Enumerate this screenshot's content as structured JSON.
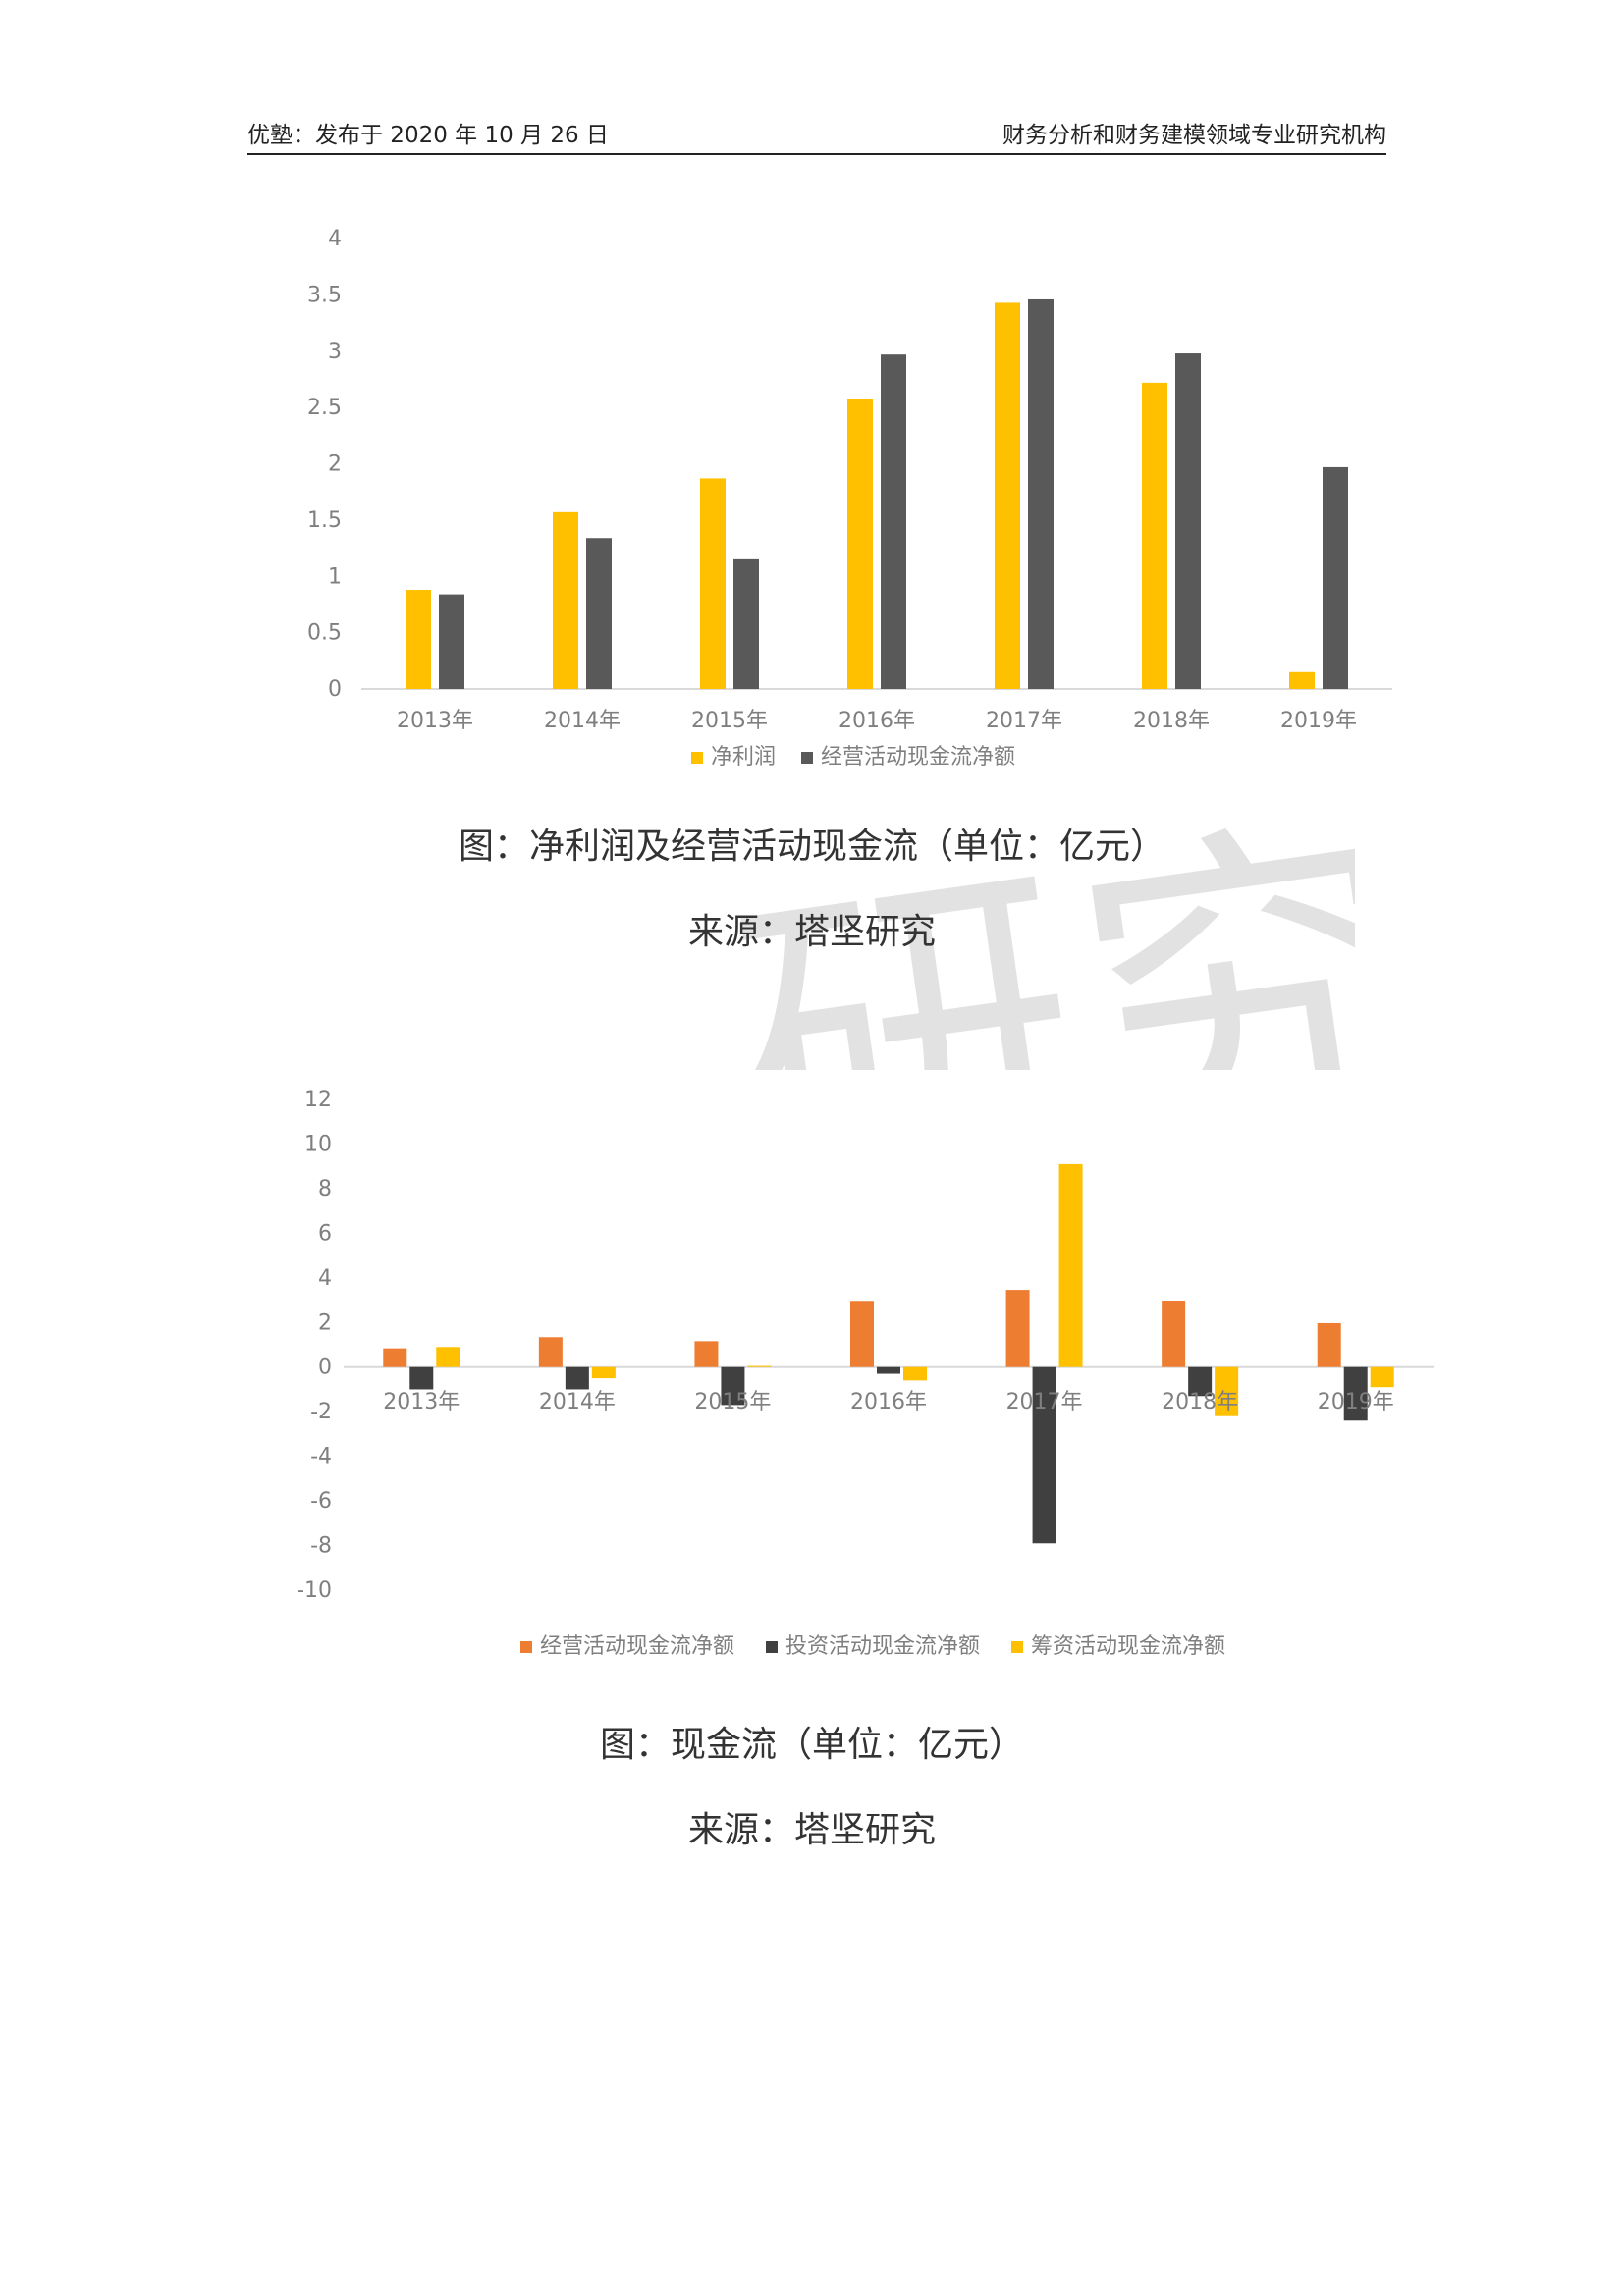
{
  "header": {
    "left": "优塾：发布于 2020 年 10 月 26 日",
    "right": "财务分析和财务建模领域专业研究机构"
  },
  "watermark": "研究",
  "captions": [
    {
      "title": "图：净利润及经营活动现金流（单位：亿元）",
      "source": "来源：塔坚研究"
    },
    {
      "title": "图：现金流（单位：亿元）",
      "source": "来源：塔坚研究"
    }
  ],
  "chart_data": [
    {
      "type": "bar",
      "categories": [
        "2013年",
        "2014年",
        "2015年",
        "2016年",
        "2017年",
        "2018年",
        "2019年"
      ],
      "series": [
        {
          "name": "净利润",
          "color": "#FFC000",
          "values": [
            0.88,
            1.57,
            1.87,
            2.58,
            3.43,
            2.72,
            0.15
          ]
        },
        {
          "name": "经营活动现金流净额",
          "color": "#595959",
          "values": [
            0.84,
            1.34,
            1.16,
            2.97,
            3.46,
            2.98,
            1.97
          ]
        }
      ],
      "ylim": [
        0,
        4
      ],
      "yticks": [
        0,
        0.5,
        1,
        1.5,
        2,
        2.5,
        3,
        3.5,
        4
      ],
      "grid": false,
      "legend": "bottom"
    },
    {
      "type": "bar",
      "categories": [
        "2013年",
        "2014年",
        "2015年",
        "2016年",
        "2017年",
        "2018年",
        "2019年"
      ],
      "series": [
        {
          "name": "经营活动现金流净额",
          "color": "#ED7D31",
          "values": [
            0.84,
            1.34,
            1.16,
            2.97,
            3.46,
            2.98,
            1.97
          ]
        },
        {
          "name": "投资活动现金流净额",
          "color": "#404040",
          "values": [
            -1.0,
            -1.0,
            -1.7,
            -0.3,
            -7.9,
            -1.3,
            -2.4
          ]
        },
        {
          "name": "筹资活动现金流净额",
          "color": "#FFC000",
          "values": [
            0.9,
            -0.5,
            0.05,
            -0.6,
            9.1,
            -2.2,
            -0.9
          ]
        }
      ],
      "ylim": [
        -10,
        12
      ],
      "yticks": [
        12,
        10,
        8,
        6,
        4,
        2,
        0,
        -2,
        -4,
        -6,
        -8,
        -10
      ],
      "grid": false,
      "legend": "bottom"
    }
  ]
}
